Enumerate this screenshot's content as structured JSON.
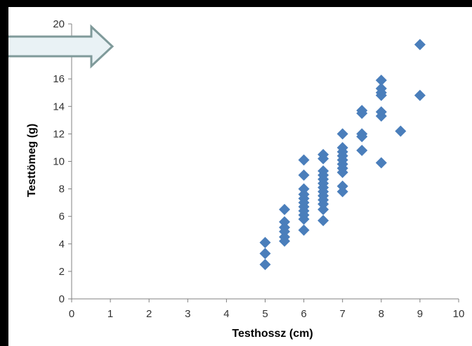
{
  "chart_data": {
    "type": "scatter",
    "xlabel": "Testhossz (cm)",
    "ylabel": "Testtömeg (g)",
    "xlim": [
      0,
      10
    ],
    "ylim": [
      0,
      20
    ],
    "x_ticks": [
      "0",
      "1",
      "2",
      "3",
      "4",
      "5",
      "6",
      "7",
      "8",
      "9",
      "10"
    ],
    "y_ticks": [
      "0",
      "2",
      "4",
      "6",
      "8",
      "10",
      "12",
      "14",
      "16",
      "18",
      "20"
    ],
    "grid": false,
    "marker": "diamond",
    "colors": {
      "marker": "#4a7ebb",
      "arrow_stroke": "#7f9a9a",
      "arrow_fill": "#e9f2f5"
    },
    "annotation": "arrow pointing right at y = 18",
    "points": [
      {
        "x": 5,
        "y": 4.1
      },
      {
        "x": 5,
        "y": 3.3
      },
      {
        "x": 5,
        "y": 2.5
      },
      {
        "x": 5.5,
        "y": 6.5
      },
      {
        "x": 5.5,
        "y": 5.6
      },
      {
        "x": 5.5,
        "y": 5.2
      },
      {
        "x": 5.5,
        "y": 4.9
      },
      {
        "x": 5.5,
        "y": 4.5
      },
      {
        "x": 5.5,
        "y": 4.2
      },
      {
        "x": 6,
        "y": 10.1
      },
      {
        "x": 6,
        "y": 9.0
      },
      {
        "x": 6,
        "y": 8.0
      },
      {
        "x": 6,
        "y": 7.6
      },
      {
        "x": 6,
        "y": 7.3
      },
      {
        "x": 6,
        "y": 7.0
      },
      {
        "x": 6,
        "y": 6.7
      },
      {
        "x": 6,
        "y": 6.4
      },
      {
        "x": 6,
        "y": 6.1
      },
      {
        "x": 6,
        "y": 5.8
      },
      {
        "x": 6,
        "y": 5.0
      },
      {
        "x": 6.5,
        "y": 10.5
      },
      {
        "x": 6.5,
        "y": 10.2
      },
      {
        "x": 6.5,
        "y": 9.3
      },
      {
        "x": 6.5,
        "y": 9.0
      },
      {
        "x": 6.5,
        "y": 8.7
      },
      {
        "x": 6.5,
        "y": 8.4
      },
      {
        "x": 6.5,
        "y": 8.1
      },
      {
        "x": 6.5,
        "y": 7.8
      },
      {
        "x": 6.5,
        "y": 7.5
      },
      {
        "x": 6.5,
        "y": 7.2
      },
      {
        "x": 6.5,
        "y": 6.9
      },
      {
        "x": 6.5,
        "y": 6.5
      },
      {
        "x": 6.5,
        "y": 5.7
      },
      {
        "x": 7,
        "y": 12.0
      },
      {
        "x": 7,
        "y": 11.0
      },
      {
        "x": 7,
        "y": 10.7
      },
      {
        "x": 7,
        "y": 10.4
      },
      {
        "x": 7,
        "y": 10.1
      },
      {
        "x": 7,
        "y": 9.8
      },
      {
        "x": 7,
        "y": 9.5
      },
      {
        "x": 7,
        "y": 9.2
      },
      {
        "x": 7,
        "y": 8.2
      },
      {
        "x": 7,
        "y": 7.8
      },
      {
        "x": 7.5,
        "y": 13.7
      },
      {
        "x": 7.5,
        "y": 13.5
      },
      {
        "x": 7.5,
        "y": 12.0
      },
      {
        "x": 7.5,
        "y": 11.8
      },
      {
        "x": 7.5,
        "y": 10.8
      },
      {
        "x": 8,
        "y": 15.9
      },
      {
        "x": 8,
        "y": 15.3
      },
      {
        "x": 8,
        "y": 15.0
      },
      {
        "x": 8,
        "y": 14.8
      },
      {
        "x": 8,
        "y": 13.6
      },
      {
        "x": 8,
        "y": 13.3
      },
      {
        "x": 8,
        "y": 9.9
      },
      {
        "x": 8.5,
        "y": 12.2
      },
      {
        "x": 9,
        "y": 18.5
      },
      {
        "x": 9,
        "y": 14.8
      }
    ]
  }
}
